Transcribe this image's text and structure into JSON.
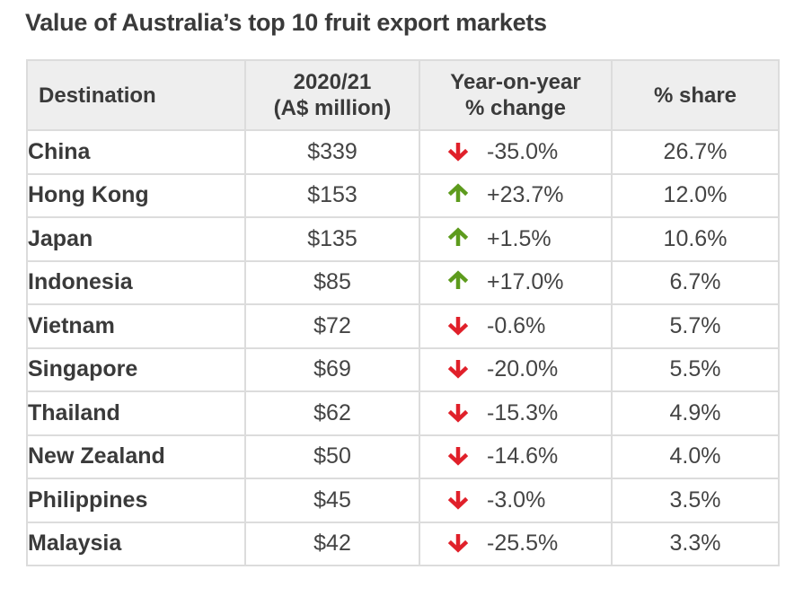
{
  "title": "Value of Australia’s top 10 fruit export markets",
  "table": {
    "headers": {
      "destination": "Destination",
      "value_line1": "2020/21",
      "value_line2": "(A$ million)",
      "change_line1": "Year-on-year",
      "change_line2": "% change",
      "share": "% share"
    },
    "colors": {
      "down": "#e0202a",
      "up": "#5d9b1d"
    },
    "rows": [
      {
        "destination": "China",
        "value": "$339",
        "direction": "down",
        "arrow_icon": "arrow-down-icon",
        "change": "-35.0%",
        "share": "26.7%"
      },
      {
        "destination": "Hong Kong",
        "value": "$153",
        "direction": "up",
        "arrow_icon": "arrow-up-icon",
        "change": "+23.7%",
        "share": "12.0%"
      },
      {
        "destination": "Japan",
        "value": "$135",
        "direction": "up",
        "arrow_icon": "arrow-up-icon",
        "change": "+1.5%",
        "share": "10.6%"
      },
      {
        "destination": "Indonesia",
        "value": "$85",
        "direction": "up",
        "arrow_icon": "arrow-up-icon",
        "change": "+17.0%",
        "share": "6.7%"
      },
      {
        "destination": "Vietnam",
        "value": "$72",
        "direction": "down",
        "arrow_icon": "arrow-down-icon",
        "change": "-0.6%",
        "share": "5.7%"
      },
      {
        "destination": "Singapore",
        "value": "$69",
        "direction": "down",
        "arrow_icon": "arrow-down-icon",
        "change": "-20.0%",
        "share": "5.5%"
      },
      {
        "destination": "Thailand",
        "value": "$62",
        "direction": "down",
        "arrow_icon": "arrow-down-icon",
        "change": "-15.3%",
        "share": "4.9%"
      },
      {
        "destination": "New Zealand",
        "value": "$50",
        "direction": "down",
        "arrow_icon": "arrow-down-icon",
        "change": "-14.6%",
        "share": "4.0%"
      },
      {
        "destination": "Philippines",
        "value": "$45",
        "direction": "down",
        "arrow_icon": "arrow-down-icon",
        "change": "-3.0%",
        "share": "3.5%"
      },
      {
        "destination": "Malaysia",
        "value": "$42",
        "direction": "down",
        "arrow_icon": "arrow-down-icon",
        "change": "-25.5%",
        "share": "3.3%"
      }
    ]
  }
}
